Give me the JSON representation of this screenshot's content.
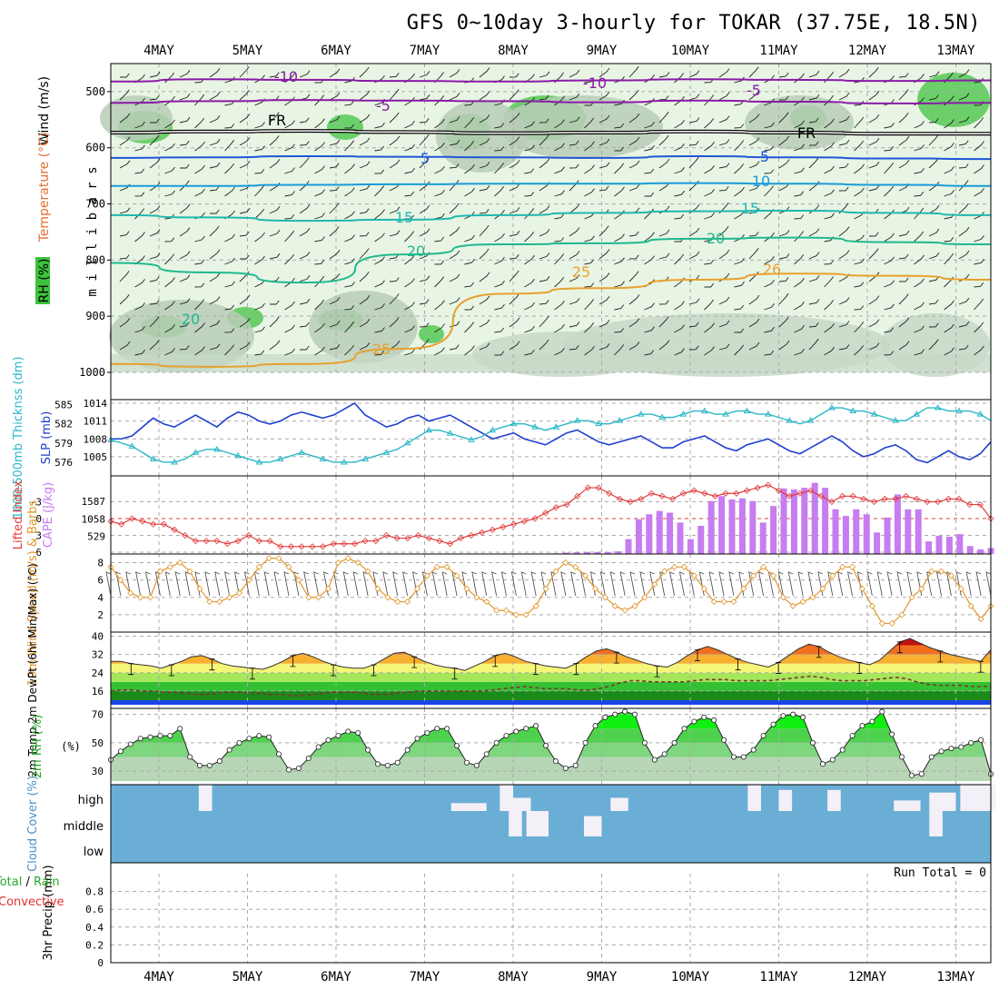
{
  "title": "GFS 0~10day 3-hourly for TOKAR (37.75E, 18.5N)",
  "dates": [
    "4MAY",
    "5MAY",
    "6MAY",
    "7MAY",
    "8MAY",
    "9MAY",
    "10MAY",
    "11MAY",
    "12MAY",
    "13MAY"
  ],
  "colors": {
    "slp": "#1f3fd0",
    "thickness": "#2ab7c7",
    "lifted": "#e03c3c",
    "cape": "#c77cf0",
    "wind": "#e0962b",
    "rh2m": "#22c322",
    "cloud": "#6aaed6",
    "precip_total": "#2aa82a",
    "precip_conv": "#e03030"
  },
  "chart_data": [
    {
      "type": "contour",
      "name": "upper-air",
      "ylabel": "m i l l i b a r s",
      "side_labels": [
        "Wind (m/s)",
        "Temperature (°C)",
        "RH (%)"
      ],
      "yticks": [
        500,
        600,
        700,
        800,
        900,
        1000
      ],
      "ylim": [
        1000,
        450
      ],
      "isotherm_labels": [
        "-10",
        "-5",
        "FR",
        "5",
        "10",
        "15",
        "20",
        "25",
        "26"
      ],
      "isotherms": [
        {
          "label": "-10",
          "values": [
            482,
            478,
            479,
            481,
            482,
            480,
            478,
            479,
            481,
            480
          ]
        },
        {
          "label": "-5",
          "values": [
            520,
            517,
            515,
            516,
            517,
            519,
            516,
            518,
            521,
            520
          ]
        },
        {
          "label": "FR",
          "values": [
            573,
            571,
            570,
            572,
            574,
            573,
            571,
            573,
            575,
            575
          ]
        },
        {
          "label": "5",
          "values": [
            618,
            617,
            615,
            616,
            617,
            618,
            615,
            617,
            619,
            620
          ]
        },
        {
          "label": "10",
          "values": [
            668,
            668,
            666,
            665,
            664,
            664,
            663,
            664,
            666,
            668
          ]
        },
        {
          "label": "15",
          "values": [
            720,
            724,
            730,
            728,
            720,
            716,
            713,
            712,
            716,
            720
          ]
        },
        {
          "label": "20",
          "values": [
            805,
            822,
            840,
            790,
            772,
            770,
            762,
            760,
            768,
            772
          ]
        },
        {
          "label": "25",
          "values": [
            985,
            990,
            985,
            958,
            860,
            850,
            835,
            824,
            828,
            835
          ]
        }
      ]
    },
    {
      "type": "line",
      "name": "slp-thickness",
      "ylabel_left": "1000-500mb Thicknss (dm)",
      "ylabel_right": "SLP (mb)",
      "left_ticks": [
        "585",
        "582",
        "579",
        "576"
      ],
      "right_ticks": [
        "1014",
        "1011",
        "1008",
        "1005"
      ],
      "series": [
        {
          "name": "SLP",
          "ylim": [
            1003,
            1014.3
          ],
          "values": [
            1008,
            1008,
            1008.5,
            1010,
            1011.5,
            1010.5,
            1010,
            1011,
            1012,
            1011,
            1010,
            1011.5,
            1012.5,
            1012,
            1011,
            1010.5,
            1011,
            1012,
            1012.5,
            1012,
            1011.5,
            1012,
            1013,
            1014,
            1012,
            1011,
            1010,
            1010.5,
            1011.5,
            1012,
            1011,
            1011.5,
            1012,
            1011,
            1010,
            1009,
            1008,
            1008.5,
            1009,
            1008,
            1007.5,
            1007,
            1008,
            1009,
            1009.5,
            1008.5,
            1007.5,
            1007,
            1007.5,
            1008,
            1008.5,
            1007.5,
            1006.5,
            1006.5,
            1007.5,
            1008,
            1008.5,
            1007.5,
            1006.5,
            1006,
            1007,
            1007.5,
            1008,
            1007,
            1006,
            1005.5,
            1006.5,
            1007.5,
            1008.5,
            1007.5,
            1006,
            1005,
            1005.5,
            1006.5,
            1007,
            1006,
            1004.5,
            1004,
            1005,
            1006,
            1005,
            1004.5,
            1005.5,
            1007.5
          ]
        },
        {
          "name": "Thickness",
          "ylim": [
            575,
            585.5
          ],
          "values": [
            579.5,
            579,
            578.5,
            577.5,
            576.5,
            576,
            576,
            576.5,
            577.5,
            578,
            578,
            577.5,
            577,
            576.5,
            576,
            576,
            576.5,
            577,
            577.5,
            577,
            576.5,
            576,
            576,
            576,
            576.5,
            577,
            577.5,
            578,
            579,
            580,
            581,
            581,
            580.5,
            580,
            579.5,
            580,
            581,
            581.5,
            582,
            582,
            581.5,
            581,
            581.5,
            582,
            582.5,
            582.5,
            582,
            582,
            582.5,
            583,
            583.5,
            583.5,
            583,
            583,
            583.5,
            584,
            584,
            583.5,
            583.5,
            584,
            584,
            583.5,
            583.5,
            583,
            582.5,
            582,
            582.5,
            583.5,
            584.5,
            584.5,
            584,
            584,
            583.5,
            583,
            582.5,
            582.5,
            583.5,
            584.5,
            584.5,
            584,
            584,
            584,
            583.5,
            582.5
          ]
        }
      ]
    },
    {
      "type": "bar+line",
      "name": "cape-lifted-index",
      "ylabel_left": "Lifted Index",
      "ylabel_right": "CAPE (J/kg)",
      "li_ticks": [
        "-3",
        "0",
        "3",
        "6"
      ],
      "cape_ticks": [
        "1587",
        "1058",
        "529"
      ],
      "lifted_index": [
        0.5,
        1,
        0,
        0.5,
        1,
        1,
        2,
        3,
        4,
        4,
        4,
        4.5,
        4,
        3,
        4,
        4,
        5,
        5,
        5,
        5,
        5,
        4.5,
        4.5,
        4.5,
        4,
        4,
        3,
        3.5,
        3.5,
        3,
        3.5,
        4,
        4.5,
        3.5,
        3,
        2.5,
        2,
        1.5,
        1,
        0.5,
        0,
        -1,
        -2,
        -2.5,
        -4,
        -5.5,
        -5.5,
        -4.5,
        -3.5,
        -3,
        -3.5,
        -4.5,
        -4,
        -3.5,
        -4.5,
        -5,
        -4.5,
        -4,
        -4.5,
        -4.5,
        -5,
        -5.5,
        -6,
        -5,
        -4,
        -4.5,
        -5,
        -4,
        -3,
        -4,
        -4,
        -3.5,
        -3,
        -3.5,
        -3.5,
        -4,
        -3.5,
        -3,
        -3,
        -3.5,
        -3.5,
        -2.5,
        -2.5,
        0
      ],
      "cape": [
        0,
        0,
        0,
        0,
        0,
        0,
        0,
        0,
        0,
        0,
        0,
        0,
        0,
        0,
        0,
        0,
        0,
        0,
        0,
        0,
        0,
        0,
        0,
        0,
        0,
        0,
        0,
        0,
        0,
        0,
        0,
        0,
        0,
        0,
        0,
        0,
        0,
        0,
        0,
        0,
        0,
        0,
        5,
        20,
        40,
        50,
        60,
        60,
        60,
        80,
        450,
        1050,
        1200,
        1300,
        1250,
        950,
        450,
        850,
        1600,
        1750,
        1650,
        1680,
        1600,
        950,
        1450,
        1980,
        1950,
        2000,
        2150,
        2000,
        1350,
        1150,
        1350,
        1200,
        650,
        1100,
        1800,
        1350,
        1350,
        380,
        550,
        520,
        600,
        240,
        140,
        180
      ]
    },
    {
      "type": "line",
      "name": "10m-wind",
      "ylabel": "10m Wind Speed (m/s) & Barbs",
      "yticks": [
        "8",
        "6",
        "4",
        "2"
      ],
      "ylim": [
        0,
        9
      ],
      "values": [
        7.5,
        6,
        4.5,
        4,
        4,
        7,
        7.5,
        8,
        7,
        5,
        3.5,
        3.5,
        4,
        4.5,
        6,
        7.5,
        8.5,
        8.5,
        7.5,
        6,
        4,
        4,
        5,
        8,
        8.5,
        8,
        7,
        5,
        4,
        3.5,
        3.5,
        5,
        6.5,
        7.5,
        7.5,
        6.5,
        5,
        4,
        3.5,
        2.5,
        2.5,
        2,
        2,
        3,
        5,
        7,
        8,
        7.5,
        6.5,
        5,
        4,
        3,
        2.5,
        3,
        4,
        5.5,
        7,
        7.5,
        7.5,
        6.5,
        5,
        3.5,
        3.5,
        3.5,
        5,
        6.5,
        7.5,
        6.5,
        4,
        3,
        3.5,
        4,
        5,
        6.5,
        7.5,
        7.5,
        5,
        3,
        1,
        1,
        2,
        4,
        5,
        7,
        7,
        6.5,
        5,
        3,
        1.5,
        3
      ]
    },
    {
      "type": "area",
      "name": "2m-temp",
      "ylabel": "2m Temp 2m DewPt (6hr Min/Max) (°C)",
      "yticks": [
        "40",
        "32",
        "24",
        "16"
      ],
      "ylim": [
        10,
        41
      ],
      "temp": [
        29,
        29,
        28,
        27.5,
        27,
        26,
        27.5,
        29,
        31,
        31.5,
        30,
        28,
        27,
        26.5,
        26,
        25.5,
        27,
        29,
        31.5,
        32.5,
        31,
        29,
        27.5,
        26.5,
        26,
        26,
        27.5,
        30,
        32.5,
        33,
        31,
        29,
        27.5,
        26.5,
        26,
        25,
        27,
        29,
        31.5,
        32.5,
        31,
        29,
        28,
        27,
        26.5,
        26,
        28,
        31,
        33.5,
        34.5,
        33,
        31,
        29.5,
        28,
        27,
        26.5,
        28.5,
        31.5,
        34,
        35.5,
        34,
        32,
        30,
        28.5,
        27.5,
        26.5,
        28.5,
        31.5,
        34.5,
        36.5,
        35.5,
        33,
        31,
        29.5,
        28.5,
        27.5,
        29.5,
        33.5,
        37.5,
        39,
        37,
        35,
        33.5,
        32,
        31,
        30,
        29,
        34
      ],
      "dewpt": [
        16,
        16.5,
        16.5,
        16,
        16,
        15.5,
        15.5,
        15,
        14.5,
        14.5,
        15,
        15.5,
        15.5,
        15,
        15,
        14.5,
        14.5,
        14,
        14,
        14.5,
        15,
        15.5,
        15.5,
        15.5,
        15,
        14.5,
        14.5,
        15,
        15.5,
        16,
        16,
        16,
        16,
        16,
        16,
        16,
        16.5,
        17,
        17.5,
        18,
        17.5,
        17,
        17,
        17,
        16.5,
        16.5,
        17,
        18,
        19.5,
        20.5,
        20.5,
        20,
        20,
        20,
        20,
        20.5,
        21,
        21,
        21,
        20.5,
        20.5,
        20.5,
        20.5,
        21,
        21.5,
        22,
        22.5,
        22,
        21,
        20.5,
        20.5,
        20.5,
        21,
        21.5,
        22,
        21.5,
        20,
        19,
        18.5,
        18.5,
        18.5,
        18,
        18,
        18
      ]
    },
    {
      "type": "area",
      "name": "2m-rh",
      "ylabel": "2m RH (%)",
      "yticks": [
        "70",
        "50",
        "30"
      ],
      "ylim": [
        23,
        73
      ],
      "values": [
        38,
        44,
        49,
        53,
        54,
        55,
        55,
        60,
        40,
        34,
        34,
        37,
        45,
        50,
        53,
        55,
        54,
        42,
        31,
        32,
        39,
        47,
        52,
        55,
        58,
        57,
        45,
        35,
        34,
        36,
        45,
        53,
        57,
        60,
        60,
        48,
        36,
        34,
        42,
        50,
        55,
        58,
        60,
        62,
        48,
        37,
        32,
        34,
        50,
        62,
        68,
        70,
        72,
        70,
        50,
        38,
        42,
        50,
        60,
        65,
        68,
        66,
        52,
        40,
        40,
        45,
        55,
        63,
        69,
        70,
        68,
        50,
        35,
        38,
        45,
        55,
        62,
        65,
        72,
        56,
        40,
        27,
        28,
        40,
        44,
        46,
        47,
        50,
        52,
        28
      ]
    },
    {
      "type": "bar",
      "name": "cloud-cover",
      "ylabel": "Cloud Cover (%)",
      "levels": [
        "high",
        "middle",
        "low"
      ],
      "high_bars": [
        {
          "day": 0.45,
          "width": 0.15,
          "value": 1
        },
        {
          "day": 3.3,
          "width": 0.4,
          "value": 0.3
        },
        {
          "day": 3.85,
          "width": 0.15,
          "value": 1
        },
        {
          "day": 4.0,
          "width": 0.2,
          "value": 0.5
        },
        {
          "day": 5.1,
          "width": 0.2,
          "value": 0.5
        },
        {
          "day": 6.65,
          "width": 0.15,
          "value": 1
        },
        {
          "day": 7.0,
          "width": 0.15,
          "value": 0.8
        },
        {
          "day": 7.55,
          "width": 0.15,
          "value": 0.8
        },
        {
          "day": 8.3,
          "width": 0.3,
          "value": 0.4
        },
        {
          "day": 8.7,
          "width": 0.3,
          "value": 0.7
        },
        {
          "day": 9.05,
          "width": 0.4,
          "value": 1
        }
      ],
      "middle_bars": [
        {
          "day": 3.95,
          "width": 0.15,
          "value": 1
        },
        {
          "day": 4.15,
          "width": 0.25,
          "value": 1
        },
        {
          "day": 4.8,
          "width": 0.2,
          "value": 0.8
        },
        {
          "day": 8.7,
          "width": 0.15,
          "value": 1
        }
      ],
      "low_bars": []
    },
    {
      "type": "bar",
      "name": "3hr-precip",
      "ylabel": "3hr Precip (mm)",
      "legend": [
        "Total",
        "Rain",
        "Convective"
      ],
      "legend_sep": "/",
      "yticks": [
        "0.8",
        "0.6",
        "0.4",
        "0.2",
        "0"
      ],
      "ylim": [
        0,
        1
      ],
      "run_total": "Run Total = 0",
      "values": []
    }
  ]
}
